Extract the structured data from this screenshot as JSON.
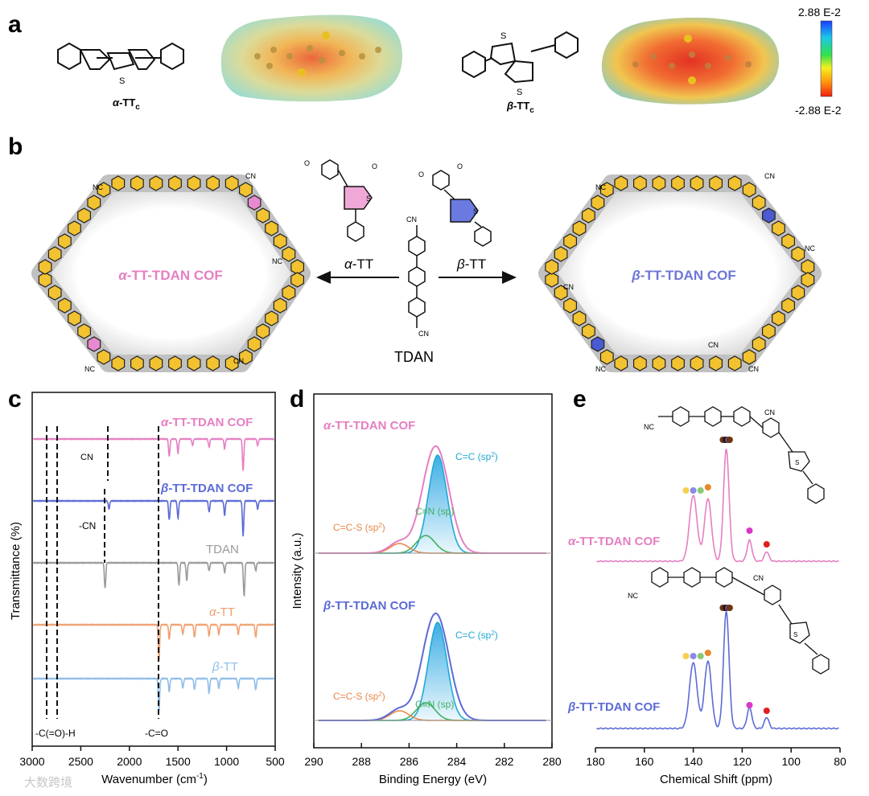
{
  "panels": {
    "a": {
      "letter": "a",
      "molecules": [
        {
          "greek": "α",
          "name": "-TT",
          "sub": "c"
        },
        {
          "greek": "β",
          "name": "-TT",
          "sub": "c"
        }
      ],
      "colorbar": {
        "max_label": "2.88 E-2",
        "min_label": "-2.88 E-2",
        "colors": [
          "#1a3cff",
          "#1cc8e8",
          "#32e04a",
          "#f4f020",
          "#ff9a10",
          "#f02010"
        ]
      }
    },
    "b": {
      "letter": "b",
      "left_cof": {
        "greek": "α",
        "name": "-TT-TDAN COF",
        "color": "#e57fc2"
      },
      "right_cof": {
        "greek": "β",
        "name": "-TT-TDAN COF",
        "color": "#6d76d6"
      },
      "left_arrow_label": {
        "greek": "α",
        "name": "-TT"
      },
      "right_arrow_label": {
        "greek": "β",
        "name": "-TT"
      },
      "center_label": "TDAN",
      "cn": "CN",
      "nc": "NC",
      "s_atom": "S",
      "aldehyde_o": "O"
    },
    "c": {
      "letter": "c",
      "ylabel": "Transmittance (%)",
      "xlabel": "Wavenumber (cm",
      "xlabel_sup": "-1",
      "xlabel_close": ")",
      "xlim": [
        3000,
        500
      ],
      "xticks": [
        "3000",
        "2500",
        "2000",
        "1500",
        "1000",
        "500"
      ],
      "series": [
        {
          "name": "-TT-TDAN COF",
          "greek": "α",
          "color": "#e57fc2"
        },
        {
          "name": "-TT-TDAN COF",
          "greek": "β",
          "color": "#5c6bd6"
        },
        {
          "name": "TDAN",
          "greek": "",
          "color": "#9a9a9a"
        },
        {
          "name": "-TT",
          "greek": "α",
          "color": "#f0a070"
        },
        {
          "name": "-TT",
          "greek": "β",
          "color": "#90bde8"
        }
      ],
      "annotations": [
        "-CN",
        "CN",
        "-C(=O)-H",
        "-C=O"
      ]
    },
    "d": {
      "letter": "d",
      "ylabel": "Intensity (a.u.)",
      "xlabel": "Binding Energy (eV)",
      "xlim": [
        290,
        280
      ],
      "xticks": [
        "290",
        "288",
        "286",
        "284",
        "282",
        "280"
      ],
      "top": {
        "greek": "α",
        "name": "-TT-TDAN COF",
        "color": "#e57fc2"
      },
      "bottom": {
        "greek": "β",
        "name": "-TT-TDAN COF",
        "color": "#5c6bd6"
      },
      "components": [
        {
          "label": "C=C (sp",
          "sup": "2",
          "close": ")",
          "center": 284.8,
          "color": "#20a8d8"
        },
        {
          "label": "C≡N (sp)",
          "center": 285.3,
          "color": "#40b060"
        },
        {
          "label": "C=C-S (sp",
          "sup": "2",
          "close": ")",
          "center": 286.4,
          "color": "#e8884a"
        }
      ]
    },
    "e": {
      "letter": "e",
      "xlabel": "Chemical Shift (ppm)",
      "xlim": [
        180,
        80
      ],
      "xticks": [
        "180",
        "160",
        "140",
        "120",
        "100",
        "80"
      ],
      "top": {
        "greek": "α",
        "name": "-TT-TDAN COF",
        "color": "#e57fc2"
      },
      "bottom": {
        "greek": "β",
        "name": "-TT-TDAN COF",
        "color": "#5c6bd6"
      },
      "peaks_ppm": [
        140,
        134,
        126,
        117,
        110
      ],
      "dot_colors": [
        "#f5d050",
        "#8a8ae8",
        "#8ac878",
        "#e8882a",
        "#6a3810",
        "#111111",
        "#7a3aa0",
        "#d838c8",
        "#e02020"
      ]
    },
    "watermark": "大数跨境"
  }
}
